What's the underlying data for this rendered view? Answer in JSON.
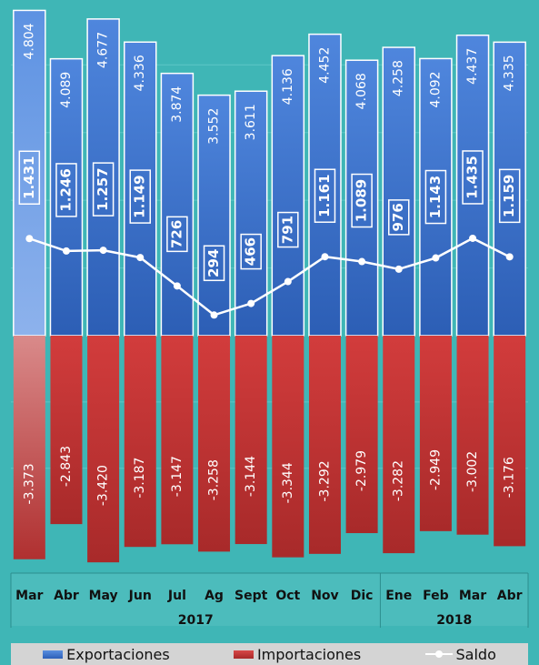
{
  "chart_data": {
    "type": "bar",
    "categories": [
      "Mar",
      "Abr",
      "May",
      "Jun",
      "Jul",
      "Ag",
      "Sept",
      "Oct",
      "Nov",
      "Dic",
      "Ene",
      "Feb",
      "Mar",
      "Abr"
    ],
    "groups": [
      {
        "label": "2017",
        "start": 0,
        "end": 9
      },
      {
        "label": "2018",
        "start": 10,
        "end": 13
      }
    ],
    "series": [
      {
        "name": "Exportaciones",
        "type": "bar",
        "values": [
          4804,
          4089,
          4677,
          4336,
          3874,
          3552,
          3611,
          4136,
          4452,
          4068,
          4258,
          4092,
          4437,
          4335
        ],
        "labels": [
          "4.804",
          "4.089",
          "4.677",
          "4.336",
          "3.874",
          "3.552",
          "3.611",
          "4.136",
          "4.452",
          "4.068",
          "4.258",
          "4.092",
          "4.437",
          "4.335"
        ],
        "color": "#3b73cf"
      },
      {
        "name": "Importaciones",
        "type": "bar",
        "values": [
          -3373,
          -2843,
          -3420,
          -3187,
          -3147,
          -3258,
          -3144,
          -3344,
          -3292,
          -2979,
          -3282,
          -2949,
          -3002,
          -3176
        ],
        "labels": [
          "-3.373",
          "-2.843",
          "-3.420",
          "-3.187",
          "-3.147",
          "-3.258",
          "-3.144",
          "-3.344",
          "-3.292",
          "-2.979",
          "-3.282",
          "-2.949",
          "-3.002",
          "-3.176"
        ],
        "color": "#c53232"
      },
      {
        "name": "Saldo",
        "type": "line",
        "values": [
          1431,
          1246,
          1257,
          1149,
          726,
          294,
          466,
          791,
          1161,
          1089,
          976,
          1143,
          1435,
          1159
        ],
        "labels": [
          "1.431",
          "1.246",
          "1.257",
          "1.149",
          "726",
          "294",
          "466",
          "791",
          "1.161",
          "1.089",
          "976",
          "1.143",
          "1.435",
          "1.159"
        ],
        "color": "#ffffff"
      }
    ],
    "ylim": [
      -3500,
      4850
    ],
    "gridlines": true,
    "legend_position": "bottom",
    "colors": {
      "background": "#3fb6b6",
      "axis_band": "#4cbcbc",
      "legend_background": "#d4d4d4",
      "first_bar_export": "#7fa7e6",
      "first_bar_import": "#d98a8a"
    }
  }
}
